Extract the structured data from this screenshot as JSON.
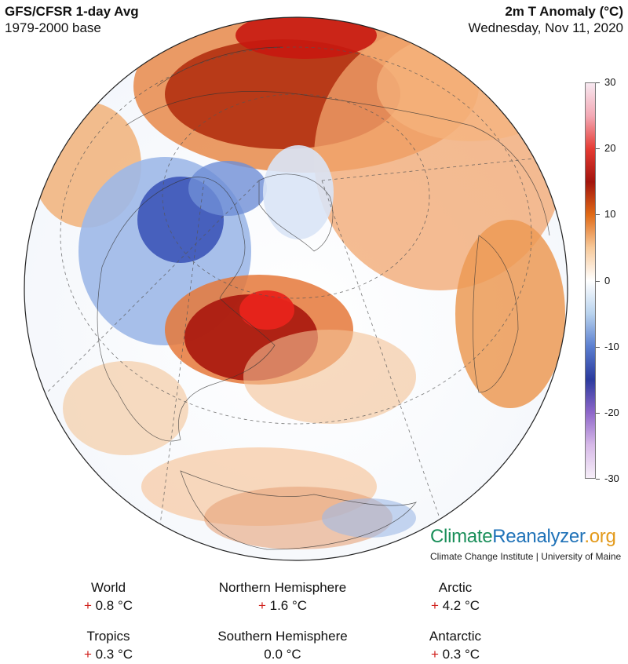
{
  "header": {
    "title": "GFS/CFSR 1-day Avg",
    "base": "1979-2000 base",
    "variable": "2m T Anomaly (°C)",
    "date": "Wednesday, Nov 11, 2020"
  },
  "colorbar": {
    "ticks": [
      "30",
      "20",
      "10",
      "0",
      "-10",
      "-20",
      "-30"
    ],
    "range": [
      -30,
      30
    ],
    "colors": [
      "#f7e8f0",
      "#f3a8b4",
      "#e53b33",
      "#a2140d",
      "#e06a16",
      "#f7c99a",
      "#ffffff",
      "#b9d3ee",
      "#5b7fd0",
      "#2b3b9e",
      "#8d66c9",
      "#d7b9e8",
      "#f6eef8"
    ]
  },
  "brand": {
    "part1": "Climate",
    "part2": "Reanalyzer",
    "part3": ".org",
    "sub": "Climate Change Institute | University of Maine"
  },
  "stats": [
    {
      "label": "World",
      "sign": "+",
      "value": "0.8 °C"
    },
    {
      "label": "Northern Hemisphere",
      "sign": "+",
      "value": "1.6 °C"
    },
    {
      "label": "Arctic",
      "sign": "+",
      "value": "4.2 °C"
    },
    {
      "label": "Tropics",
      "sign": "+",
      "value": "0.3 °C"
    },
    {
      "label": "Southern Hemisphere",
      "sign": "",
      "value": "0.0 °C"
    },
    {
      "label": "Antarctic",
      "sign": "+",
      "value": "0.3 °C"
    }
  ]
}
